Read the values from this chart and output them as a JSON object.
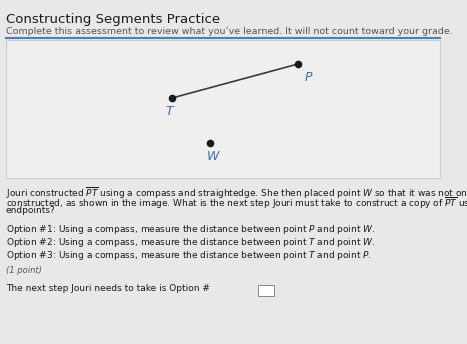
{
  "title": "Constructing Segments Practice",
  "subtitle": "Complete this assessment to review what you’ve learned. It will not count toward your grade.",
  "title_fontsize": 9.5,
  "subtitle_fontsize": 6.8,
  "bg_color": "#ebebeb",
  "outer_bg": "#e8e8e8",
  "divider_color": "#4a7fbf",
  "label_color": "#3a6fa8",
  "point_color": "#1a1a1a",
  "line_color": "#3a3a3a",
  "label_T": "T",
  "label_P": "P",
  "label_W": "W",
  "label_fontsize": 9,
  "body_line1": "Jouri constructed $\\overline{PT}$ using a compass and straightedge. She then placed point $W$ so that it was not on the segment she just",
  "body_line2": "constructed, as shown in the image. What is the next step Jouri must take to construct a copy of $\\overline{PT}$ using point $W$ as one of her",
  "body_line3": "endpoints?",
  "option1": "Option #1: Using a compass, measure the distance between point $P$ and point $W$.",
  "option2": "Option #2: Using a compass, measure the distance between point $T$ and point $W$.",
  "option3": "Option #3: Using a compass, measure the distance between point $T$ and point $P$.",
  "point_label": "(1 point)",
  "answer_text": "The next step Jouri needs to take is Option #",
  "text_fontsize": 6.5,
  "option_fontsize": 6.5
}
